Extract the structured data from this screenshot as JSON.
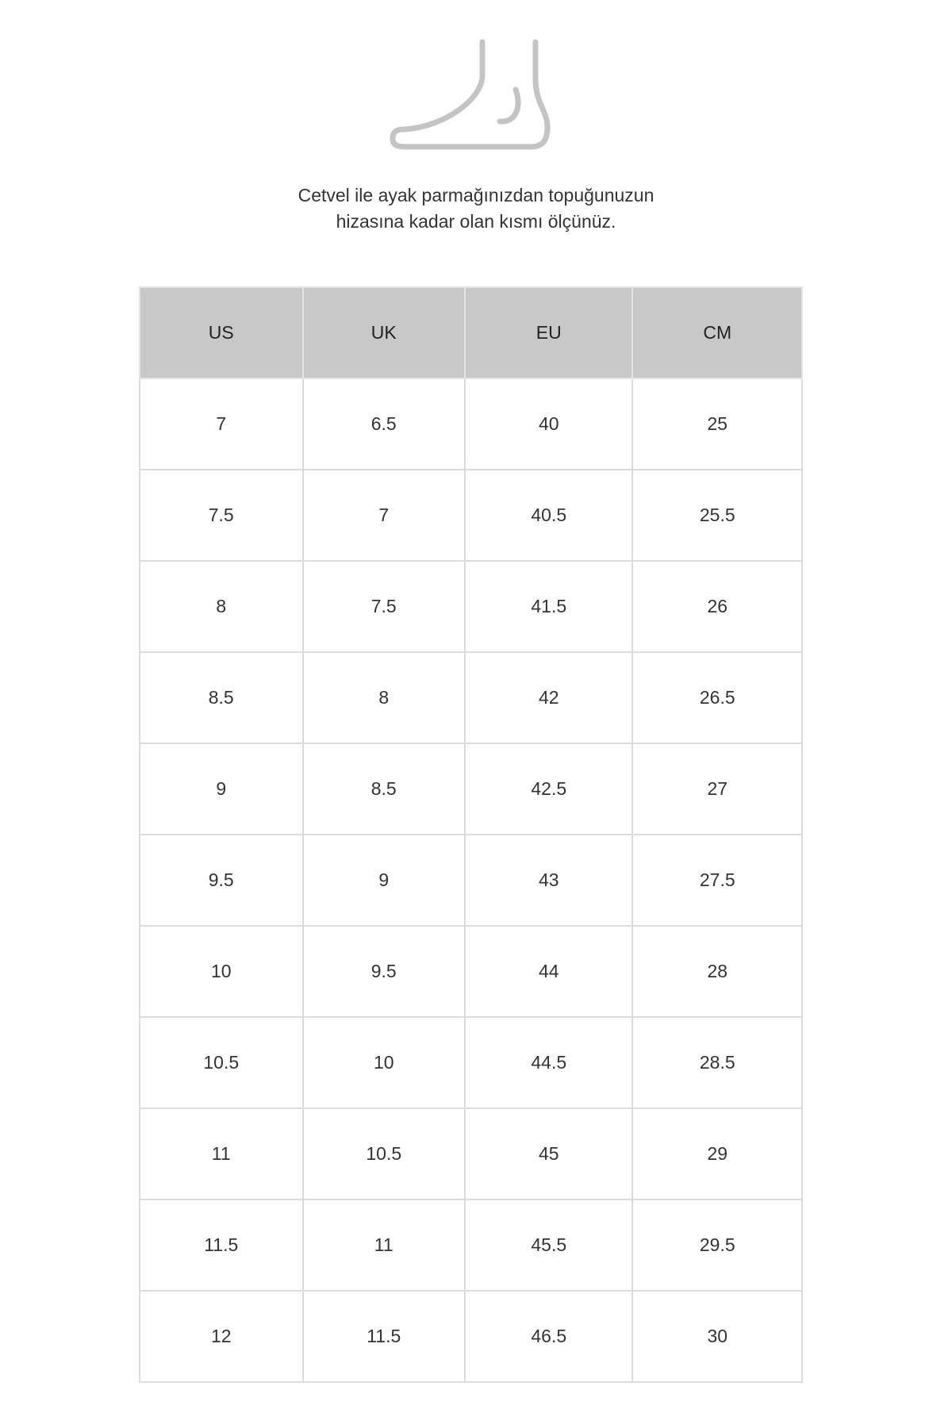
{
  "icon": "foot-icon",
  "instructions": [
    "Cetvel ile ayak parmağınızdan topuğunuzun",
    "hizasına kadar olan kısmı ölçünüz."
  ],
  "table": {
    "headers": [
      "US",
      "UK",
      "EU",
      "CM"
    ],
    "rows": [
      [
        "7",
        "6.5",
        "40",
        "25"
      ],
      [
        "7.5",
        "7",
        "40.5",
        "25.5"
      ],
      [
        "8",
        "7.5",
        "41.5",
        "26"
      ],
      [
        "8.5",
        "8",
        "42",
        "26.5"
      ],
      [
        "9",
        "8.5",
        "42.5",
        "27"
      ],
      [
        "9.5",
        "9",
        "43",
        "27.5"
      ],
      [
        "10",
        "9.5",
        "44",
        "28"
      ],
      [
        "10.5",
        "10",
        "44.5",
        "28.5"
      ],
      [
        "11",
        "10.5",
        "45",
        "29"
      ],
      [
        "11.5",
        "11",
        "45.5",
        "29.5"
      ],
      [
        "12",
        "11.5",
        "46.5",
        "30"
      ]
    ]
  },
  "colors": {
    "header_bg": "#c8c8c8",
    "border": "#dcdcdc",
    "icon": "#c4c4c4"
  }
}
